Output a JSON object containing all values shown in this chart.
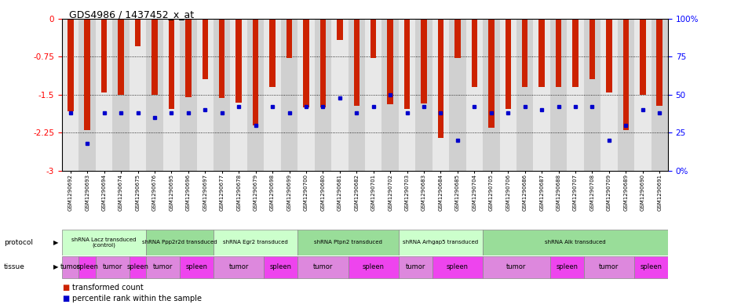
{
  "title": "GDS4986 / 1437452_x_at",
  "samples": [
    "GSM1290692",
    "GSM1290693",
    "GSM1290694",
    "GSM1290674",
    "GSM1290675",
    "GSM1290676",
    "GSM1290695",
    "GSM1290696",
    "GSM1290697",
    "GSM1290677",
    "GSM1290678",
    "GSM1290679",
    "GSM1290698",
    "GSM1290699",
    "GSM1290700",
    "GSM1290680",
    "GSM1290681",
    "GSM1290682",
    "GSM1290701",
    "GSM1290702",
    "GSM1290703",
    "GSM1290683",
    "GSM1290684",
    "GSM1290685",
    "GSM1290704",
    "GSM1290705",
    "GSM1290706",
    "GSM1290686",
    "GSM1290687",
    "GSM1290688",
    "GSM1290707",
    "GSM1290708",
    "GSM1290709",
    "GSM1290689",
    "GSM1290690",
    "GSM1290691"
  ],
  "bar_values": [
    -1.82,
    -2.2,
    -1.45,
    -1.5,
    -0.55,
    -1.5,
    -1.78,
    -1.55,
    -1.2,
    -1.57,
    -1.65,
    -2.1,
    -1.35,
    -0.78,
    -1.75,
    -1.75,
    -0.42,
    -1.72,
    -0.78,
    -1.68,
    -1.78,
    -1.67,
    -2.35,
    -0.78,
    -1.35,
    -2.15,
    -1.78,
    -1.35,
    -1.35,
    -1.35,
    -1.35,
    -1.2,
    -1.45,
    -2.2,
    -1.5,
    -1.72
  ],
  "percentile_values": [
    38,
    18,
    38,
    38,
    38,
    35,
    38,
    38,
    40,
    38,
    42,
    30,
    42,
    38,
    42,
    42,
    48,
    38,
    42,
    50,
    38,
    42,
    38,
    20,
    42,
    38,
    38,
    42,
    40,
    42,
    42,
    42,
    20,
    30,
    40,
    38
  ],
  "bar_color": "#cc2200",
  "dot_color": "#0000cc",
  "ylim_min": -3.0,
  "ylim_max": 0.0,
  "yticks": [
    0.0,
    -0.75,
    -1.5,
    -2.25,
    -3.0
  ],
  "ytick_labels": [
    "0",
    "-0.75",
    "-1.5",
    "-2.25",
    "-3"
  ],
  "right_yticks": [
    0,
    25,
    50,
    75,
    100
  ],
  "right_ytick_labels": [
    "0%",
    "25",
    "50",
    "75",
    "100%"
  ],
  "protocols": [
    {
      "label": "shRNA Lacz transduced\n(control)",
      "start": 0,
      "end": 4,
      "color": "#ccffcc"
    },
    {
      "label": "shRNA Ppp2r2d transduced",
      "start": 5,
      "end": 8,
      "color": "#99dd99"
    },
    {
      "label": "shRNA Egr2 transduced",
      "start": 9,
      "end": 13,
      "color": "#ccffcc"
    },
    {
      "label": "shRNA Ptpn2 transduced",
      "start": 14,
      "end": 19,
      "color": "#99dd99"
    },
    {
      "label": "shRNA Arhgap5 transduced",
      "start": 20,
      "end": 24,
      "color": "#ccffcc"
    },
    {
      "label": "shRNA Alk transduced",
      "start": 25,
      "end": 35,
      "color": "#99dd99"
    }
  ],
  "tissues": [
    {
      "label": "tumor",
      "start": 0,
      "end": 0,
      "color": "#dd88dd"
    },
    {
      "label": "spleen",
      "start": 1,
      "end": 1,
      "color": "#ee44ee"
    },
    {
      "label": "tumor",
      "start": 2,
      "end": 3,
      "color": "#dd88dd"
    },
    {
      "label": "spleen",
      "start": 4,
      "end": 4,
      "color": "#ee44ee"
    },
    {
      "label": "tumor",
      "start": 5,
      "end": 6,
      "color": "#dd88dd"
    },
    {
      "label": "spleen",
      "start": 7,
      "end": 8,
      "color": "#ee44ee"
    },
    {
      "label": "tumor",
      "start": 9,
      "end": 11,
      "color": "#dd88dd"
    },
    {
      "label": "spleen",
      "start": 12,
      "end": 13,
      "color": "#ee44ee"
    },
    {
      "label": "tumor",
      "start": 14,
      "end": 16,
      "color": "#dd88dd"
    },
    {
      "label": "spleen",
      "start": 17,
      "end": 19,
      "color": "#ee44ee"
    },
    {
      "label": "tumor",
      "start": 20,
      "end": 21,
      "color": "#dd88dd"
    },
    {
      "label": "spleen",
      "start": 22,
      "end": 24,
      "color": "#ee44ee"
    },
    {
      "label": "tumor",
      "start": 25,
      "end": 28,
      "color": "#dd88dd"
    },
    {
      "label": "spleen",
      "start": 29,
      "end": 30,
      "color": "#ee44ee"
    },
    {
      "label": "tumor",
      "start": 31,
      "end": 33,
      "color": "#dd88dd"
    },
    {
      "label": "spleen",
      "start": 34,
      "end": 35,
      "color": "#ee44ee"
    }
  ],
  "col_bg_light": "#e8e8e8",
  "col_bg_dark": "#d0d0d0"
}
